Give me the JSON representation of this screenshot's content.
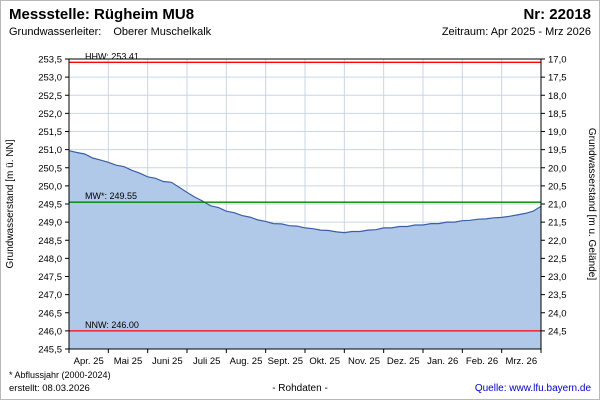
{
  "header": {
    "station": "Messstelle: Rügheim MU8",
    "number": "Nr: 22018",
    "aquifer_label": "Grundwasserleiter:",
    "aquifer_value": "Oberer Muschelkalk",
    "period": "Zeitraum: Apr 2025 - Mrz 2026"
  },
  "footer": {
    "note": "* Abflussjahr (2000-2024)",
    "created": "erstellt: 08.03.2026",
    "center": "- Rohdaten -",
    "source": "Quelle: www.lfu.bayern.de"
  },
  "chart_data": {
    "type": "area",
    "title": "",
    "ylabel_left": "Grundwasserstand [m ü. NN]",
    "ylabel_right": "Grundwasserstand [m u. Gelände]",
    "ylim": [
      245.5,
      253.5
    ],
    "x_range": [
      0,
      12
    ],
    "x_step": 0.2,
    "grid": true,
    "legend_position": "none",
    "x_tick_labels": [
      "Apr. 25",
      "Mai 25",
      "Juni 25",
      "Juli 25",
      "Aug. 25",
      "Sept. 25",
      "Okt. 25",
      "Nov. 25",
      "Dez. 25",
      "Jan. 26",
      "Feb. 26",
      "Mrz. 26"
    ],
    "y_ticks_left": [
      "253,5",
      "253,0",
      "252,5",
      "252,0",
      "251,5",
      "251,0",
      "250,5",
      "250,0",
      "249,5",
      "249,0",
      "248,5",
      "248,0",
      "247,5",
      "247,0",
      "246,5",
      "246,0",
      "245,5"
    ],
    "y_ticks_right": [
      "17,0",
      "17,5",
      "18,0",
      "18,5",
      "19,0",
      "19,5",
      "20,0",
      "20,5",
      "21,0",
      "21,5",
      "22,0",
      "22,5",
      "23,0",
      "23,5",
      "24,0",
      "24,5"
    ],
    "reference_lines": [
      {
        "id": "HHW",
        "label": "HHW: 253.41",
        "value": 253.41,
        "color": "#ff0000"
      },
      {
        "id": "MW",
        "label": "MW*: 249.55",
        "value": 249.55,
        "color": "#008000"
      },
      {
        "id": "NNW",
        "label": "NNW: 246.00",
        "value": 246.0,
        "color": "#ff0000"
      }
    ],
    "series": [
      {
        "name": "Grundwasserstand Rohdaten",
        "values": [
          250.97,
          250.92,
          250.88,
          250.77,
          250.71,
          250.65,
          250.57,
          250.53,
          250.43,
          250.35,
          250.25,
          250.21,
          250.12,
          250.1,
          249.96,
          249.82,
          249.69,
          249.58,
          249.45,
          249.4,
          249.3,
          249.26,
          249.18,
          249.14,
          249.06,
          249.02,
          248.96,
          248.95,
          248.9,
          248.89,
          248.84,
          248.82,
          248.78,
          248.77,
          248.73,
          248.71,
          248.74,
          248.74,
          248.78,
          248.79,
          248.84,
          248.84,
          248.88,
          248.88,
          248.92,
          248.92,
          248.96,
          248.96,
          249.0,
          249.0,
          249.04,
          249.05,
          249.08,
          249.09,
          249.12,
          249.13,
          249.16,
          249.2,
          249.24,
          249.3,
          249.44
        ]
      }
    ],
    "colors": {
      "area_fill": "#b1c9e8",
      "line": "#3a5fa8",
      "grid": "#c9d6e4",
      "border": "#000000",
      "reference_red": "#ff0000",
      "reference_green": "#008000"
    }
  }
}
